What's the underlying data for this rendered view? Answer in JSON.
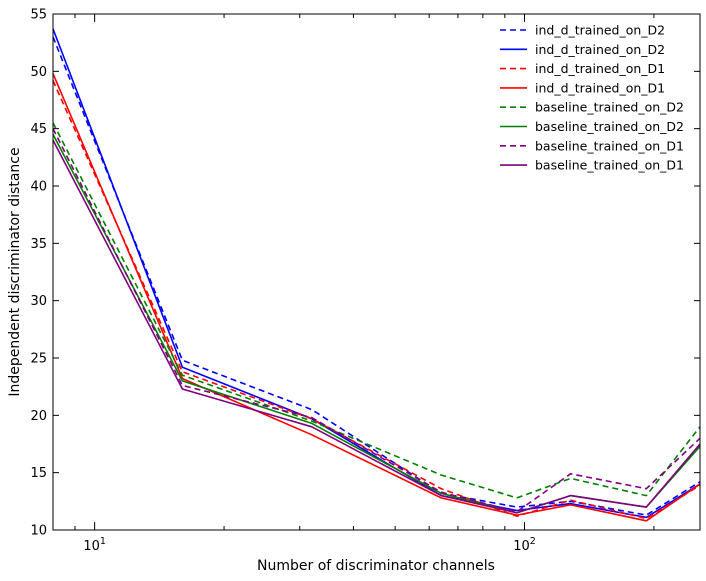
{
  "chart_data": {
    "type": "line",
    "title": "",
    "xlabel": "Number of discriminator channels",
    "ylabel": "Independent discriminator distance",
    "xscale": "log",
    "xlim": [
      8,
      256
    ],
    "ylim": [
      10,
      55
    ],
    "yticks": [
      10,
      15,
      20,
      25,
      30,
      35,
      40,
      45,
      50,
      55
    ],
    "xticks_major": [
      {
        "value": 10,
        "base": "10",
        "exp": "1"
      },
      {
        "value": 100,
        "base": "10",
        "exp": "2"
      }
    ],
    "xticks_minor": [
      8,
      9,
      20,
      30,
      40,
      50,
      60,
      70,
      80,
      90,
      200
    ],
    "grid": false,
    "legend_position": "top-right",
    "x": [
      8,
      16,
      32,
      64,
      96,
      128,
      192,
      256
    ],
    "series": [
      {
        "name": "ind_d_trained_on_D2",
        "style": "dashed",
        "color": "#0000ff",
        "values": [
          53.0,
          24.8,
          20.5,
          13.2,
          12.0,
          12.5,
          11.3,
          14.2
        ]
      },
      {
        "name": "ind_d_trained_on_D2",
        "style": "solid",
        "color": "#0000ff",
        "values": [
          53.7,
          24.2,
          19.7,
          13.0,
          11.7,
          12.3,
          11.1,
          14.0
        ]
      },
      {
        "name": "ind_d_trained_on_D1",
        "style": "dashed",
        "color": "#ff0000",
        "values": [
          49.2,
          23.8,
          19.7,
          13.6,
          11.2,
          12.6,
          11.0,
          13.9
        ]
      },
      {
        "name": "ind_d_trained_on_D1",
        "style": "solid",
        "color": "#ff0000",
        "values": [
          49.8,
          23.2,
          18.3,
          12.8,
          11.3,
          12.2,
          10.8,
          14.0
        ]
      },
      {
        "name": "baseline_trained_on_D2",
        "style": "dashed",
        "color": "#008000",
        "values": [
          45.5,
          23.5,
          19.5,
          14.8,
          12.8,
          14.5,
          13.0,
          19.0
        ]
      },
      {
        "name": "baseline_trained_on_D2",
        "style": "solid",
        "color": "#008000",
        "values": [
          44.5,
          23.0,
          19.3,
          13.2,
          11.5,
          13.0,
          12.0,
          17.3
        ]
      },
      {
        "name": "baseline_trained_on_D1",
        "style": "dashed",
        "color": "#800080",
        "values": [
          45.0,
          22.6,
          19.8,
          13.3,
          11.6,
          14.9,
          13.6,
          18.0
        ]
      },
      {
        "name": "baseline_trained_on_D1",
        "style": "solid",
        "color": "#800080",
        "values": [
          44.0,
          22.3,
          19.0,
          13.0,
          11.5,
          13.0,
          12.0,
          17.5
        ]
      }
    ]
  }
}
